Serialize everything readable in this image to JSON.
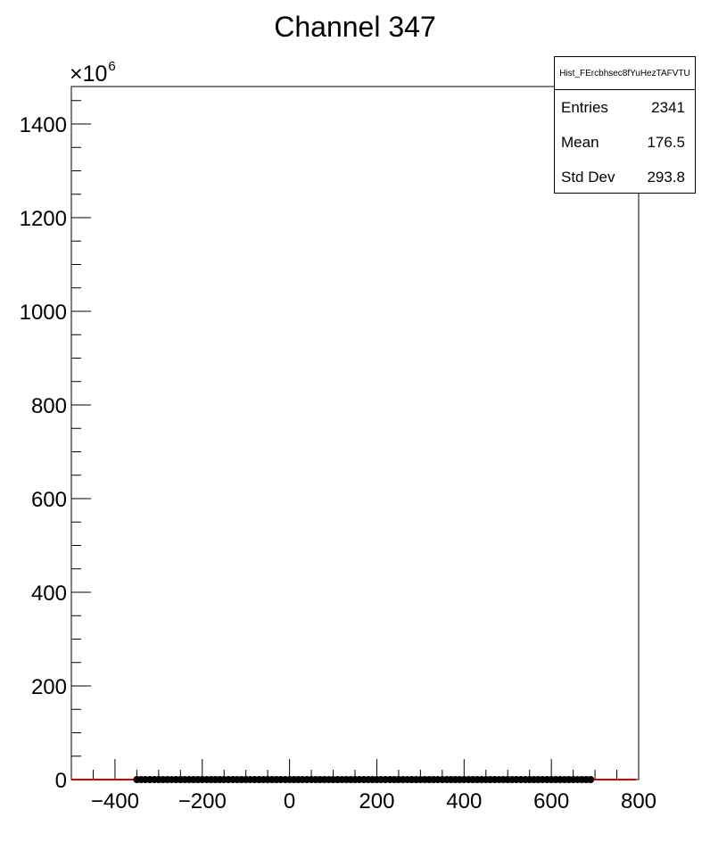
{
  "title": "Channel 347",
  "y_multiplier": {
    "base": "×10",
    "exponent": "6"
  },
  "stats_box": {
    "name": "Hist_FErcbhsec8fYuHezTAFVTU",
    "rows": [
      {
        "key": "Entries",
        "value": "2341"
      },
      {
        "key": "Mean",
        "value": "176.5"
      },
      {
        "key": "Std Dev",
        "value": "293.8"
      }
    ]
  },
  "colors": {
    "line": "#cc0000",
    "marker": "#000000",
    "axes": "#000000"
  },
  "chart_data": {
    "type": "scatter",
    "title": "Channel 347",
    "xlabel": "",
    "ylabel": "",
    "xlim": [
      -500,
      800
    ],
    "ylim": [
      0,
      1480
    ],
    "y_scale_factor": "×10^6",
    "x_ticks": [
      -400,
      -200,
      0,
      200,
      400,
      600,
      800
    ],
    "x_tick_labels": [
      "−400",
      "−200",
      "0",
      "200",
      "400",
      "600",
      "800"
    ],
    "y_ticks": [
      0,
      200,
      400,
      600,
      800,
      1000,
      1200,
      1400
    ],
    "y_tick_labels": [
      "0",
      "200",
      "400",
      "600",
      "800",
      "1000",
      "1200",
      "1400"
    ],
    "grid": false,
    "series": [
      {
        "x_range": [
          -350,
          690
        ],
        "x_step": 10,
        "y_value": 0,
        "marker": "circle"
      }
    ]
  }
}
